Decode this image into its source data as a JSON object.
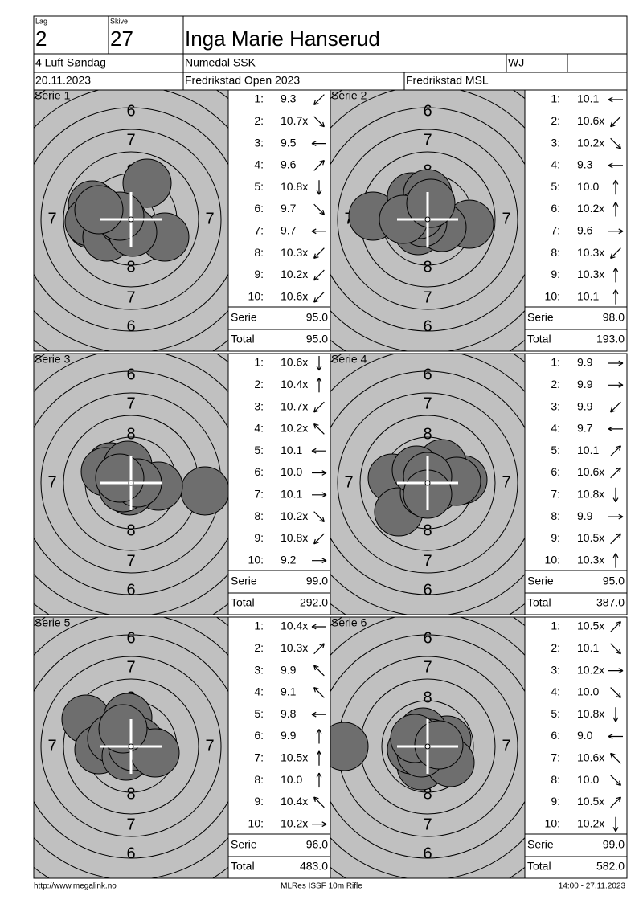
{
  "header": {
    "lag_label": "Lag",
    "lag": "2",
    "skive_label": "Skive",
    "skive": "27",
    "name": "Inga Marie Hanserud",
    "event": "4 Luft Søndag",
    "club": "Numedal SSK",
    "class": "WJ",
    "date": "20.11.2023",
    "competition": "Fredrikstad Open 2023",
    "venue": "Fredrikstad MSL"
  },
  "target_labels": {
    "outer": "6",
    "middle": "7",
    "inner": "8"
  },
  "shot_labels": [
    "1:",
    "2:",
    "3:",
    "4:",
    "5:",
    "6:",
    "7:",
    "8:",
    "9:",
    "10:"
  ],
  "serie_label": "Serie",
  "total_label": "Total",
  "series": [
    {
      "title": "Serie 1",
      "shots": [
        "9.3",
        "10.7x",
        "9.5",
        "9.6",
        "10.8x",
        "9.7",
        "9.7",
        "10.3x",
        "10.2x",
        "10.6x"
      ],
      "serie": "95.0",
      "total": "95.0"
    },
    {
      "title": "Serie 2",
      "shots": [
        "10.1",
        "10.6x",
        "10.2x",
        "9.3",
        "10.0",
        "10.2x",
        "9.6",
        "10.3x",
        "10.3x",
        "10.1"
      ],
      "serie": "98.0",
      "total": "193.0"
    },
    {
      "title": "Serie 3",
      "shots": [
        "10.6x",
        "10.4x",
        "10.7x",
        "10.2x",
        "10.1",
        "10.0",
        "10.1",
        "10.2x",
        "10.8x",
        "9.2"
      ],
      "serie": "99.0",
      "total": "292.0"
    },
    {
      "title": "Serie 4",
      "shots": [
        "9.9",
        "9.9",
        "9.9",
        "9.7",
        "10.1",
        "10.6x",
        "10.8x",
        "9.9",
        "10.5x",
        "10.3x"
      ],
      "serie": "95.0",
      "total": "387.0"
    },
    {
      "title": "Serie 5",
      "shots": [
        "10.4x",
        "10.3x",
        "9.9",
        "9.1",
        "9.8",
        "9.9",
        "10.5x",
        "10.0",
        "10.4x",
        "10.2x"
      ],
      "serie": "96.0",
      "total": "483.0"
    },
    {
      "title": "Serie 6",
      "shots": [
        "10.5x",
        "10.1",
        "10.2x",
        "10.0",
        "10.8x",
        "9.0",
        "10.6x",
        "10.0",
        "10.5x",
        "10.2x"
      ],
      "serie": "99.0",
      "total": "582.0"
    }
  ],
  "footer": {
    "url": "http://www.megalink.no",
    "program": "MLRes ISSF 10m Rifle",
    "timestamp": "14:00 - 27.11.2023"
  }
}
